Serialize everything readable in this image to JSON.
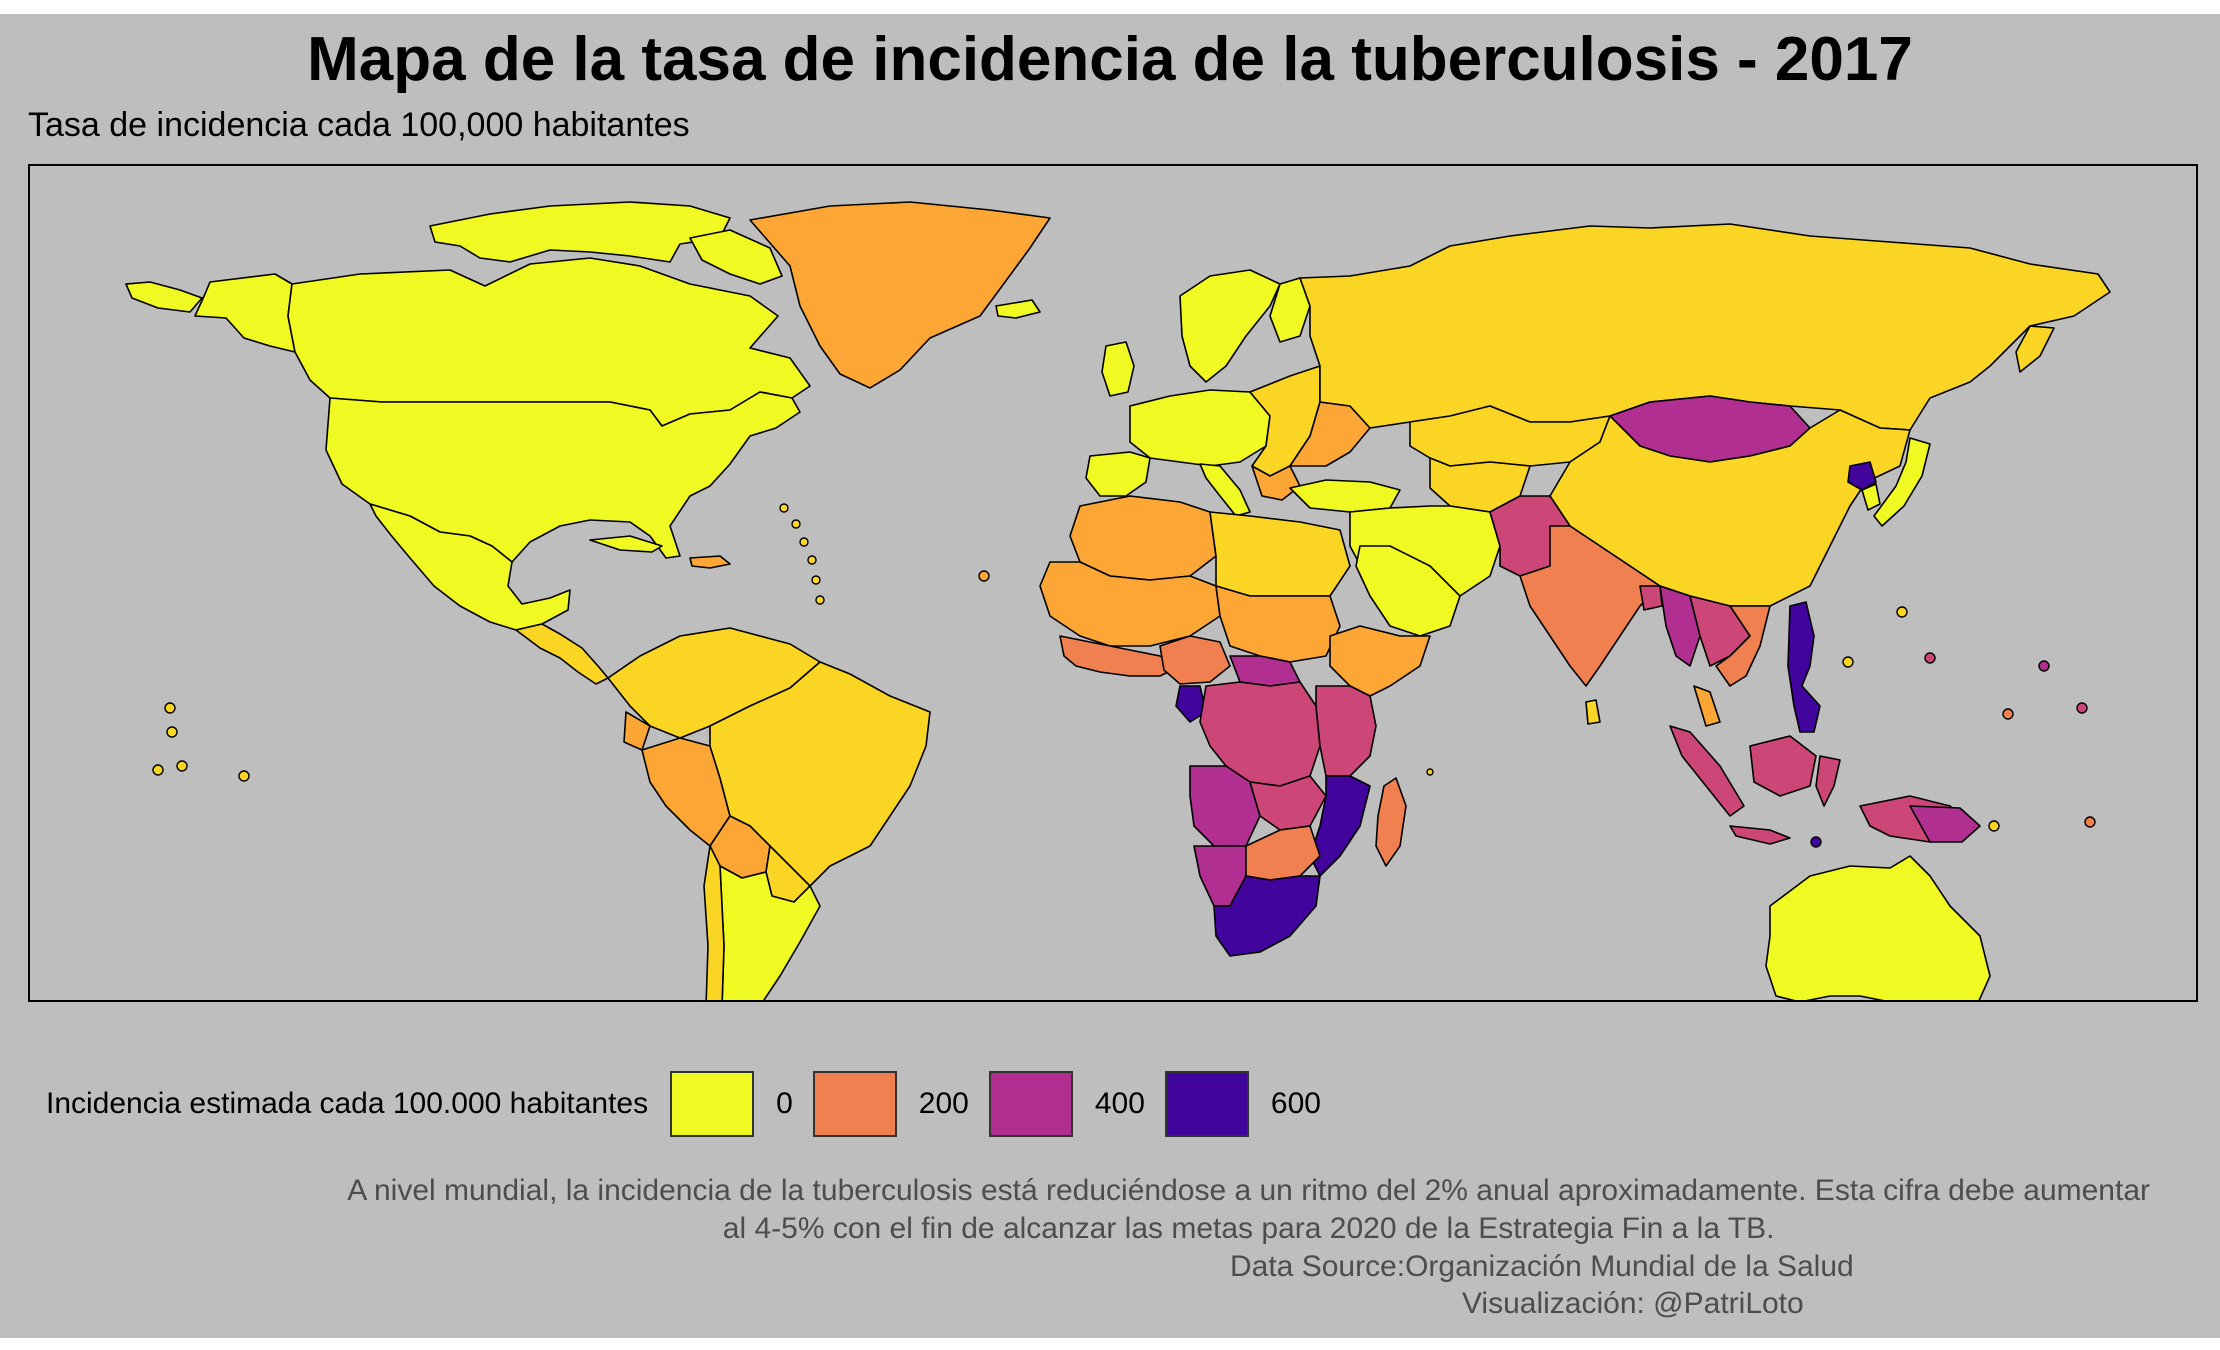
{
  "title": "Mapa de la tasa de incidencia de la tuberculosis - 2017",
  "subtitle": "Tasa de incidencia cada 100,000 habitantes",
  "legend": {
    "title": "Incidencia estimada cada 100.000 habitantes",
    "items": [
      {
        "label": "0",
        "color": "#f0f921"
      },
      {
        "label": "200",
        "color": "#f0804f"
      },
      {
        "label": "400",
        "color": "#b02f90"
      },
      {
        "label": "600",
        "color": "#41049d"
      }
    ]
  },
  "caption": {
    "line1": "A nivel mundial, la incidencia de la tuberculosis está reduciéndose a un ritmo del 2% anual aproximadamente. Esta cifra debe aumentar",
    "line2": "al 4-5% con el fin de alcanzar las metas para 2020 de la Estrategia Fin a la TB.",
    "source": "Data Source:Organización Mundial de la Salud",
    "credit": "Visualización: @PatriLoto"
  },
  "palette": {
    "background": "#bebebe",
    "scale": [
      "#f0f921",
      "#fbd524",
      "#fca636",
      "#f0804f",
      "#cc4778",
      "#b02f90",
      "#7e03a8",
      "#41049d"
    ]
  },
  "map_data": {
    "type": "choropleth",
    "variable": "estimated TB incidence per 100,000 population",
    "year": 2017,
    "scale_breaks": [
      0,
      200,
      400,
      600
    ],
    "regions": [
      {
        "name": "North America",
        "band": "0-50"
      },
      {
        "name": "Greenland",
        "band": "100-150"
      },
      {
        "name": "Mexico",
        "band": "0-50"
      },
      {
        "name": "Central America",
        "band": "25-75"
      },
      {
        "name": "South America (most)",
        "band": "25-75"
      },
      {
        "name": "Peru",
        "band": "100-150"
      },
      {
        "name": "Bolivia",
        "band": "100-150"
      },
      {
        "name": "Western Europe",
        "band": "0-25"
      },
      {
        "name": "Eastern Europe",
        "band": "50-100"
      },
      {
        "name": "Russia",
        "band": "50-100"
      },
      {
        "name": "China",
        "band": "50-100"
      },
      {
        "name": "Mongolia",
        "band": "400-450"
      },
      {
        "name": "North Korea",
        "band": "500-550"
      },
      {
        "name": "India / South Asia",
        "band": "200-250"
      },
      {
        "name": "Myanmar",
        "band": "300-400"
      },
      {
        "name": "Southeast Asia",
        "band": "150-300"
      },
      {
        "name": "Philippines",
        "band": "550-600"
      },
      {
        "name": "Indonesia",
        "band": "300-350"
      },
      {
        "name": "Papua New Guinea",
        "band": "400-450"
      },
      {
        "name": "North Africa",
        "band": "50-100"
      },
      {
        "name": "West Africa",
        "band": "100-200"
      },
      {
        "name": "Central Africa",
        "band": "300-400"
      },
      {
        "name": "Gabon",
        "band": "500-550"
      },
      {
        "name": "East Africa",
        "band": "200-350"
      },
      {
        "name": "Mozambique",
        "band": "550-600"
      },
      {
        "name": "Southern Africa",
        "band": "350-450"
      },
      {
        "name": "South Africa / Lesotho",
        "band": "550-650"
      },
      {
        "name": "Madagascar",
        "band": "200-250"
      },
      {
        "name": "Middle East",
        "band": "0-50"
      },
      {
        "name": "Australia",
        "band": "0-25"
      },
      {
        "name": "New Zealand",
        "band": "0-25"
      }
    ]
  }
}
